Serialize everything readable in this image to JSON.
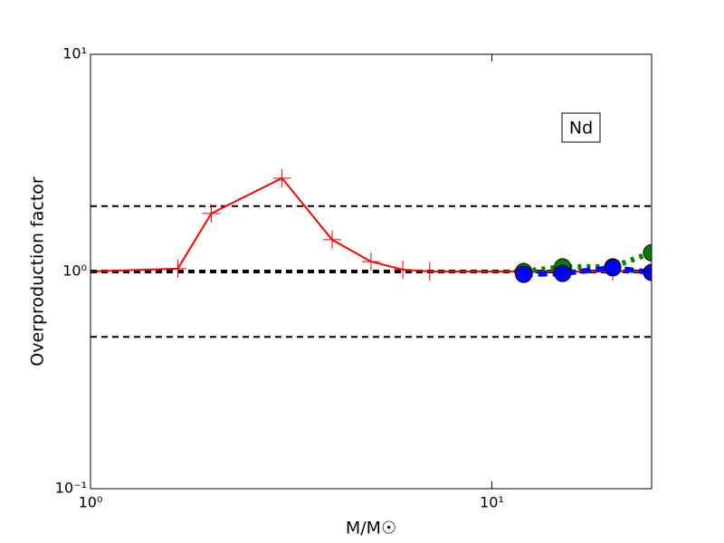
{
  "chart_data": {
    "type": "line",
    "xlabel": "M/M☉",
    "ylabel": "Overproduction factor",
    "annotation": "Nd",
    "xlog": true,
    "ylog": true,
    "xlim": [
      1,
      25
    ],
    "ylim": [
      0.1,
      10
    ],
    "xticks": [
      {
        "value": 1,
        "label": "10⁰"
      },
      {
        "value": 10,
        "label": "10¹"
      }
    ],
    "yticks": [
      {
        "value": 0.1,
        "label": "10⁻¹"
      },
      {
        "value": 1,
        "label": "10⁰"
      },
      {
        "value": 10,
        "label": "10¹"
      }
    ],
    "hlines": [
      0.5,
      1,
      2
    ],
    "series": [
      {
        "color": "#ff0000",
        "x": [
          1,
          1.65,
          2,
          3,
          4,
          5,
          6,
          7,
          12,
          15,
          20,
          25
        ],
        "values": [
          1.0,
          1.03,
          1.85,
          2.69,
          1.4,
          1.11,
          1.02,
          1.0,
          1.0,
          1.0,
          1.0,
          1.0
        ]
      },
      {
        "color": "#007f00",
        "x": [
          12,
          15,
          20,
          25
        ],
        "values": [
          1.0,
          1.05,
          1.05,
          1.22
        ]
      },
      {
        "color": "#0000ff",
        "x": [
          12,
          15,
          20,
          25
        ],
        "values": [
          0.97,
          0.98,
          1.04,
          0.99
        ]
      }
    ]
  }
}
